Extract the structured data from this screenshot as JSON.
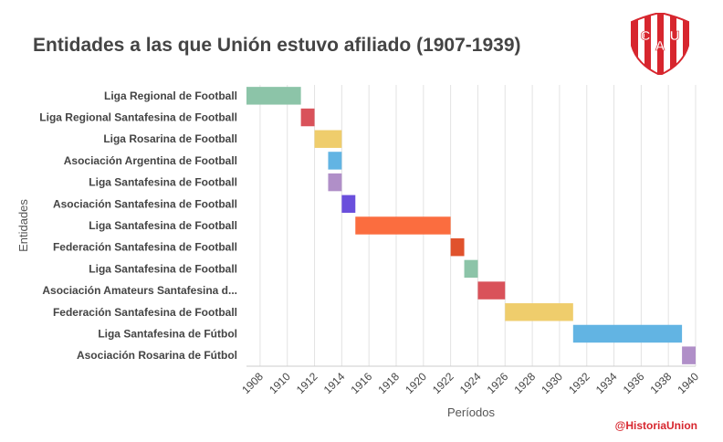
{
  "header": {
    "title": "Entidades a las que Unión estuvo afiliado (1907-1939)",
    "logo_letters": [
      "C",
      "A",
      "U"
    ],
    "credit": "@HistoriaUnion"
  },
  "chart_data": {
    "type": "gantt",
    "title": "Entidades a las que Unión estuvo afiliado (1907-1939)",
    "xlabel": "Períodos",
    "ylabel": "Entidades",
    "xlim": [
      1907,
      1940
    ],
    "xticks": [
      1908,
      1910,
      1912,
      1914,
      1916,
      1918,
      1920,
      1922,
      1924,
      1926,
      1928,
      1930,
      1932,
      1934,
      1936,
      1938,
      1940
    ],
    "grid": true,
    "categories": [
      "Liga Regional de Football",
      "Liga Regional Santafesina de Football",
      "Liga Rosarina de Football",
      "Asociación Argentina de Football",
      "Liga Santafesina de Football",
      "Asociación Santafesina de Football",
      "Liga Santafesina de Football",
      "Federación Santafesina de Football",
      "Liga Santafesina de Football",
      "Asociación Amateurs Santafesina d...",
      "Federación Santafesina de Football",
      "Liga Santafesina de Fútbol",
      "Asociación Rosarina de Fútbol"
    ],
    "series": [
      {
        "start": 1907,
        "end": 1911,
        "color": "#8cc4a8"
      },
      {
        "start": 1911,
        "end": 1912,
        "color": "#d9525a"
      },
      {
        "start": 1912,
        "end": 1914,
        "color": "#efcd6c"
      },
      {
        "start": 1913,
        "end": 1914,
        "color": "#62b4e3"
      },
      {
        "start": 1913,
        "end": 1914,
        "color": "#b08fc8"
      },
      {
        "start": 1914,
        "end": 1915,
        "color": "#6a4fdc"
      },
      {
        "start": 1915,
        "end": 1922,
        "color": "#fb6d3f"
      },
      {
        "start": 1922,
        "end": 1923,
        "color": "#e0522c"
      },
      {
        "start": 1923,
        "end": 1924,
        "color": "#8cc4a8"
      },
      {
        "start": 1924,
        "end": 1926,
        "color": "#d9525a"
      },
      {
        "start": 1926,
        "end": 1931,
        "color": "#efcd6c"
      },
      {
        "start": 1931,
        "end": 1939,
        "color": "#62b4e3"
      },
      {
        "start": 1939,
        "end": 1940,
        "color": "#b08fc8"
      }
    ]
  }
}
